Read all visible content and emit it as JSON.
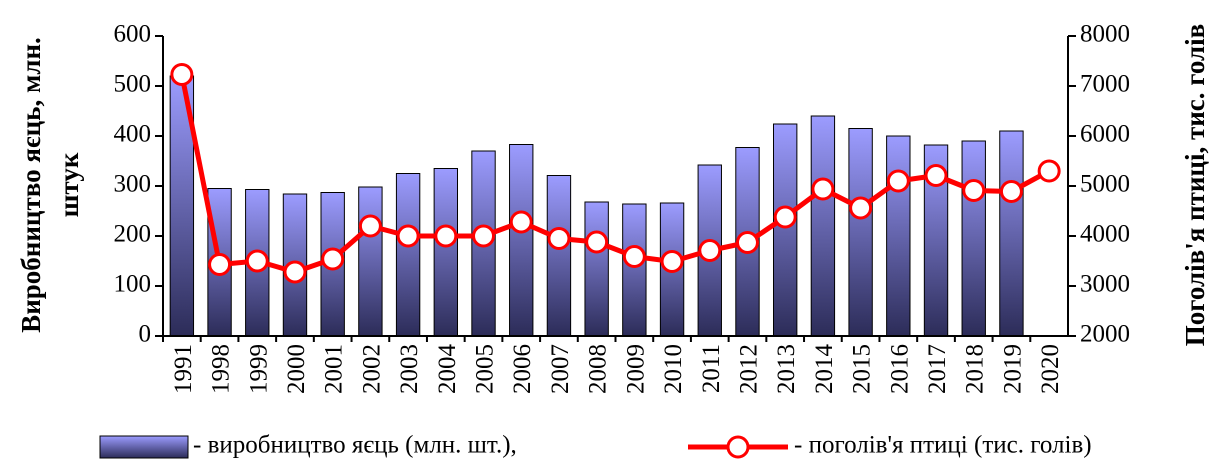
{
  "chart_data": {
    "type": "bar_line",
    "y_label": "Виробництво яєць, млн. штук",
    "y2_label": "Поголів'я птиці, тис. голів",
    "categories": [
      "1991",
      "1998",
      "1999",
      "2000",
      "2001",
      "2002",
      "2003",
      "2004",
      "2005",
      "2006",
      "2007",
      "2008",
      "2009",
      "2010",
      "2011",
      "2012",
      "2013",
      "2014",
      "2015",
      "2016",
      "2017",
      "2018",
      "2019",
      "2020"
    ],
    "series": [
      {
        "name": "- виробництво яєць (млн. шт.),",
        "type": "bar",
        "color": "#9c9cff",
        "values": [
          520,
          295,
          293,
          284,
          287,
          298,
          325,
          335,
          370,
          383,
          321,
          268,
          264,
          266,
          342,
          377,
          424,
          440,
          415,
          400,
          382,
          390,
          410,
          null
        ]
      },
      {
        "name": "- поголів'я птиці (тис. голів)",
        "type": "line",
        "axis": "y2",
        "color": "#ff0000",
        "values": [
          7230,
          3430,
          3500,
          3280,
          3540,
          4200,
          4000,
          4000,
          4000,
          4280,
          3950,
          3880,
          3590,
          3490,
          3710,
          3870,
          4380,
          4940,
          4560,
          5100,
          5210,
          4910,
          4890,
          5300
        ]
      }
    ],
    "ylim": [
      0,
      600
    ],
    "yticks": [
      0,
      100,
      200,
      300,
      400,
      500,
      600
    ],
    "y2lim": [
      2000,
      8000
    ],
    "y2ticks": [
      2000,
      3000,
      4000,
      5000,
      6000,
      7000,
      8000
    ],
    "legend": "bottom"
  }
}
